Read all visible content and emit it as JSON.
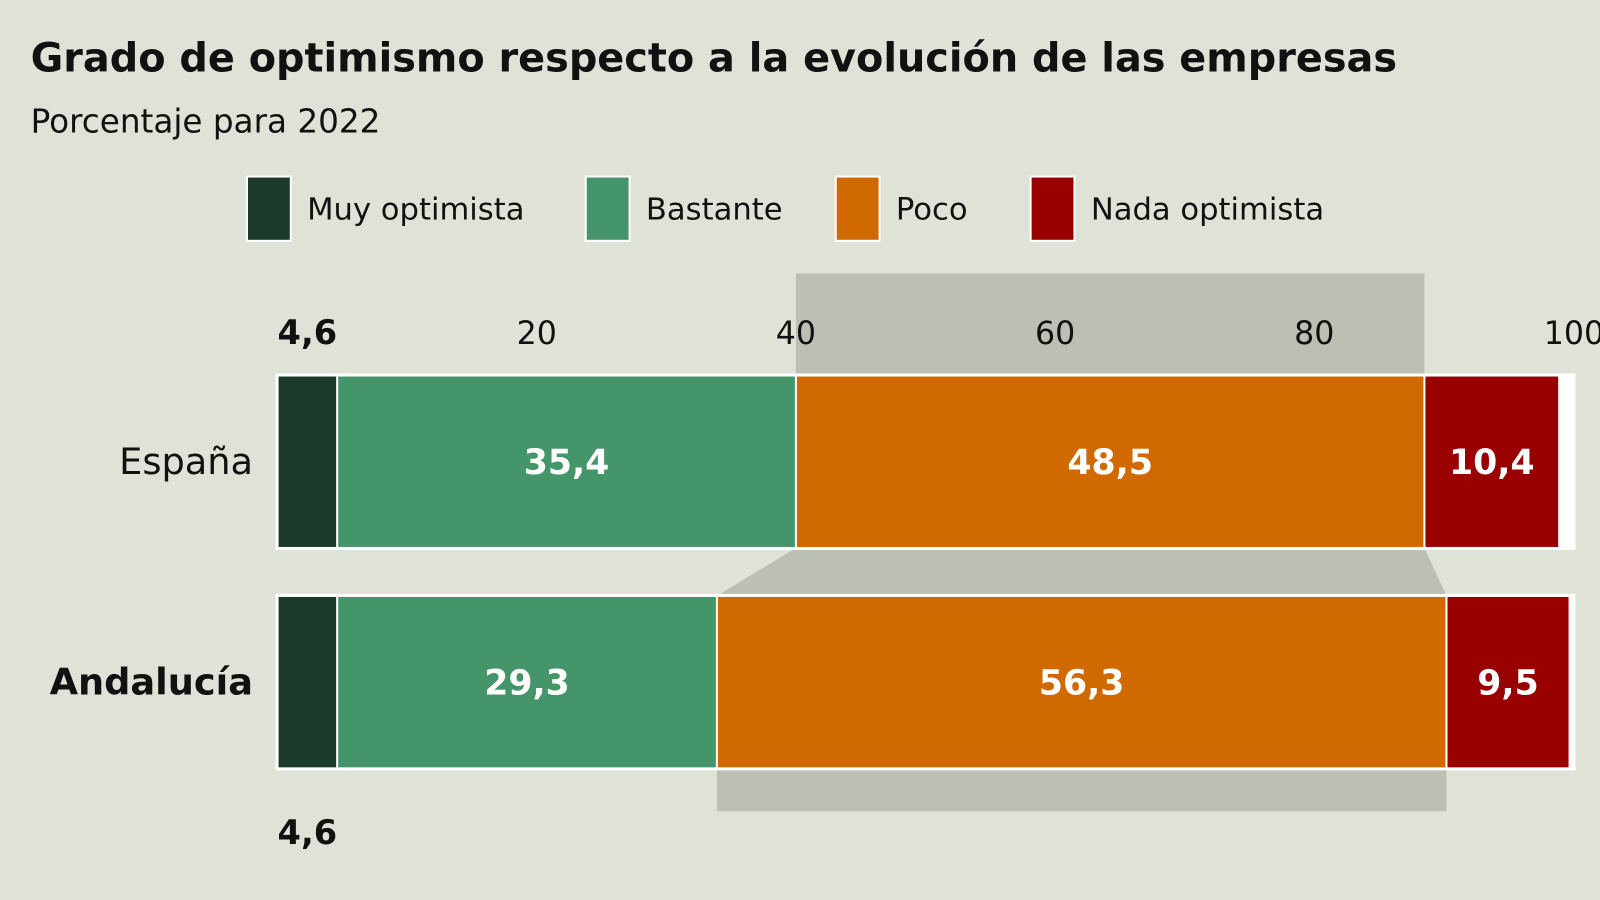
{
  "chart_data": {
    "type": "bar",
    "orientation": "horizontal",
    "stacked": true,
    "title": "Grado de optimismo respecto a la evolución de las empresas",
    "subtitle": "Porcentaje para 2022",
    "categories": [
      "España",
      "Andalucía"
    ],
    "highlight_category": "Andalucía",
    "series": [
      {
        "name": "Muy optimista",
        "color": "#1b3a2a",
        "values": [
          4.6,
          4.6
        ],
        "labels": [
          "4,6",
          "4,6"
        ]
      },
      {
        "name": "Bastante",
        "color": "#45956a",
        "values": [
          35.4,
          29.3
        ],
        "labels": [
          "35,4",
          "29,3"
        ]
      },
      {
        "name": "Poco",
        "color": "#d06a00",
        "values": [
          48.5,
          56.3
        ],
        "labels": [
          "48,5",
          "56,3"
        ]
      },
      {
        "name": "Nada optimista",
        "color": "#990000",
        "values": [
          10.4,
          9.5
        ],
        "labels": [
          "10,4",
          "9,5"
        ]
      }
    ],
    "xlim": [
      0,
      100
    ],
    "xticks": [
      "20",
      "40",
      "60",
      "80",
      "100"
    ],
    "legend": "top",
    "grid": false
  }
}
